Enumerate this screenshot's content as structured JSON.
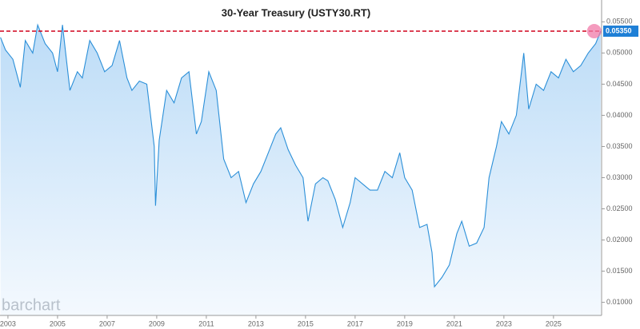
{
  "chart_data": {
    "type": "line",
    "title": "30-Year Treasury (USTY30.RT)",
    "watermark": "barchart",
    "color": "#2b8fd8",
    "x": [
      2002.7,
      2002.9,
      2003.2,
      2003.5,
      2003.7,
      2004.0,
      2004.2,
      2004.5,
      2004.8,
      2005.0,
      2005.2,
      2005.5,
      2005.8,
      2006.0,
      2006.3,
      2006.6,
      2006.9,
      2007.2,
      2007.5,
      2007.8,
      2008.0,
      2008.3,
      2008.6,
      2008.9,
      2008.95,
      2009.1,
      2009.4,
      2009.7,
      2010.0,
      2010.3,
      2010.6,
      2010.8,
      2011.1,
      2011.4,
      2011.7,
      2012.0,
      2012.3,
      2012.6,
      2012.9,
      2013.2,
      2013.5,
      2013.8,
      2014.0,
      2014.3,
      2014.6,
      2014.9,
      2015.1,
      2015.4,
      2015.7,
      2015.9,
      2016.2,
      2016.5,
      2016.8,
      2017.0,
      2017.3,
      2017.6,
      2017.9,
      2018.2,
      2018.5,
      2018.8,
      2019.0,
      2019.3,
      2019.6,
      2019.9,
      2020.1,
      2020.2,
      2020.5,
      2020.8,
      2021.1,
      2021.3,
      2021.6,
      2021.9,
      2022.2,
      2022.4,
      2022.7,
      2022.9,
      2023.2,
      2023.5,
      2023.8,
      2024.0,
      2024.3,
      2024.6,
      2024.9,
      2025.2,
      2025.5,
      2025.8,
      2026.1,
      2026.4,
      2026.7,
      2026.9
    ],
    "values": [
      0.0525,
      0.0505,
      0.049,
      0.0445,
      0.052,
      0.05,
      0.0545,
      0.0515,
      0.05,
      0.047,
      0.0545,
      0.044,
      0.047,
      0.046,
      0.052,
      0.05,
      0.047,
      0.048,
      0.052,
      0.046,
      0.044,
      0.0455,
      0.045,
      0.035,
      0.0255,
      0.036,
      0.044,
      0.042,
      0.046,
      0.047,
      0.037,
      0.039,
      0.047,
      0.044,
      0.033,
      0.03,
      0.031,
      0.026,
      0.029,
      0.031,
      0.034,
      0.037,
      0.038,
      0.0345,
      0.032,
      0.03,
      0.023,
      0.029,
      0.03,
      0.0295,
      0.0265,
      0.022,
      0.026,
      0.03,
      0.029,
      0.028,
      0.028,
      0.031,
      0.03,
      0.034,
      0.03,
      0.028,
      0.022,
      0.0225,
      0.018,
      0.0125,
      0.014,
      0.016,
      0.021,
      0.023,
      0.019,
      0.0195,
      0.022,
      0.03,
      0.035,
      0.039,
      0.037,
      0.04,
      0.05,
      0.041,
      0.045,
      0.044,
      0.047,
      0.046,
      0.049,
      0.047,
      0.048,
      0.05,
      0.0515,
      0.0535
    ],
    "xlim": [
      2002.68,
      2026.94
    ],
    "xticks": [
      {
        "value": 2003,
        "label": "2003"
      },
      {
        "value": 2005,
        "label": "2005"
      },
      {
        "value": 2007,
        "label": "2007"
      },
      {
        "value": 2009,
        "label": "2009"
      },
      {
        "value": 2011,
        "label": "2011"
      },
      {
        "value": 2013,
        "label": "2013"
      },
      {
        "value": 2015,
        "label": "2015"
      },
      {
        "value": 2017,
        "label": "2017"
      },
      {
        "value": 2019,
        "label": "2019"
      },
      {
        "value": 2021,
        "label": "2021"
      },
      {
        "value": 2023,
        "label": "2023"
      },
      {
        "value": 2025,
        "label": "2025"
      }
    ],
    "ylim": [
      0.0079,
      0.0585
    ],
    "yticks": [
      {
        "value": 0.01,
        "label": "0.01000"
      },
      {
        "value": 0.015,
        "label": "0.01500"
      },
      {
        "value": 0.02,
        "label": "0.02000"
      },
      {
        "value": 0.025,
        "label": "0.02500"
      },
      {
        "value": 0.03,
        "label": "0.03000"
      },
      {
        "value": 0.035,
        "label": "0.03500"
      },
      {
        "value": 0.04,
        "label": "0.04000"
      },
      {
        "value": 0.045,
        "label": "0.04500"
      },
      {
        "value": 0.05,
        "label": "0.05000"
      },
      {
        "value": 0.055,
        "label": "0.05500"
      }
    ],
    "reference_line": {
      "value": 0.0535,
      "label": "0.05350",
      "color": "#d0021b"
    }
  }
}
